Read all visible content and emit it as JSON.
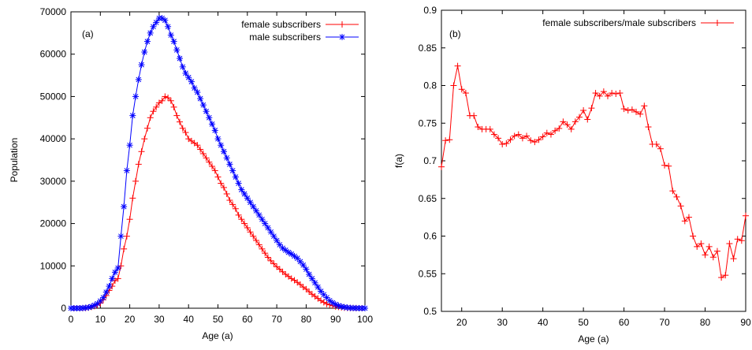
{
  "colors": {
    "female": "#ff0000",
    "male": "#0000ff",
    "ratio": "#ff0000",
    "axis": "#000000"
  },
  "chart_data": [
    {
      "type": "line",
      "panel_label": "(a)",
      "xlabel": "Age (a)",
      "ylabel": "Population",
      "xlim": [
        0,
        100
      ],
      "ylim": [
        0,
        70000
      ],
      "xticks": [
        "0",
        "10",
        "20",
        "30",
        "40",
        "50",
        "60",
        "70",
        "80",
        "90",
        "100"
      ],
      "yticks": [
        "0",
        "10000",
        "20000",
        "30000",
        "40000",
        "50000",
        "60000",
        "70000"
      ],
      "legend_position": "top-right",
      "grid": false,
      "x": [
        0,
        1,
        2,
        3,
        4,
        5,
        6,
        7,
        8,
        9,
        10,
        11,
        12,
        13,
        14,
        15,
        16,
        17,
        18,
        19,
        20,
        21,
        22,
        23,
        24,
        25,
        26,
        27,
        28,
        29,
        30,
        31,
        32,
        33,
        34,
        35,
        36,
        37,
        38,
        39,
        40,
        41,
        42,
        43,
        44,
        45,
        46,
        47,
        48,
        49,
        50,
        51,
        52,
        53,
        54,
        55,
        56,
        57,
        58,
        59,
        60,
        61,
        62,
        63,
        64,
        65,
        66,
        67,
        68,
        69,
        70,
        71,
        72,
        73,
        74,
        75,
        76,
        77,
        78,
        79,
        80,
        81,
        82,
        83,
        84,
        85,
        86,
        87,
        88,
        89,
        90,
        91,
        92,
        93,
        94,
        95,
        96,
        97,
        98,
        99,
        100
      ],
      "series": [
        {
          "name": "female subscribers",
          "marker": "plus",
          "color": "#ff0000",
          "values": [
            0,
            0,
            0,
            0,
            0,
            50,
            150,
            300,
            500,
            800,
            1200,
            2000,
            3000,
            4200,
            5200,
            6500,
            7000,
            10000,
            14000,
            17000,
            21000,
            26000,
            30000,
            34000,
            37000,
            40000,
            42500,
            45000,
            46500,
            47500,
            48500,
            49000,
            50000,
            49700,
            49000,
            47500,
            45500,
            44000,
            42500,
            41500,
            40000,
            39500,
            39000,
            38500,
            37500,
            36500,
            35500,
            34500,
            33500,
            32500,
            31000,
            29500,
            28500,
            27000,
            25500,
            24500,
            23500,
            22000,
            21000,
            20000,
            19000,
            18000,
            17000,
            16000,
            15000,
            14000,
            13000,
            12000,
            11200,
            10500,
            9800,
            9200,
            8600,
            8000,
            7500,
            7000,
            6600,
            6100,
            5600,
            5000,
            4500,
            3900,
            3300,
            2800,
            2300,
            1800,
            1400,
            1000,
            800,
            600,
            400,
            300,
            200,
            120,
            80,
            50,
            30,
            20,
            10,
            5,
            0
          ]
        },
        {
          "name": "male subscribers",
          "marker": "star",
          "color": "#0000ff",
          "values": [
            0,
            0,
            0,
            0,
            50,
            100,
            200,
            400,
            700,
            1100,
            1700,
            2500,
            3800,
            5200,
            7000,
            8500,
            9500,
            17000,
            24000,
            32500,
            38500,
            45500,
            50000,
            54000,
            57500,
            60500,
            63000,
            65000,
            66500,
            67500,
            68500,
            68500,
            68000,
            66500,
            64500,
            63000,
            61000,
            59000,
            57000,
            55500,
            54500,
            53500,
            52000,
            51000,
            49500,
            48000,
            46500,
            45000,
            43500,
            42000,
            40000,
            38500,
            37000,
            35500,
            34000,
            32500,
            31000,
            29500,
            28000,
            27000,
            26000,
            25000,
            24000,
            23000,
            22000,
            21000,
            20000,
            19000,
            18000,
            17000,
            16000,
            15000,
            14200,
            13700,
            13200,
            12800,
            12300,
            11800,
            11000,
            10200,
            9200,
            8000,
            7000,
            6000,
            5000,
            4000,
            3200,
            2500,
            1800,
            1300,
            900,
            600,
            400,
            250,
            150,
            80,
            50,
            30,
            10,
            5,
            0
          ]
        }
      ]
    },
    {
      "type": "line",
      "panel_label": "(b)",
      "xlabel": "Age (a)",
      "ylabel": "f(a)",
      "xlim": [
        15,
        90
      ],
      "ylim": [
        0.5,
        0.9
      ],
      "xticks": [
        "20",
        "30",
        "40",
        "50",
        "60",
        "70",
        "80",
        "90"
      ],
      "yticks": [
        "0.5",
        "0.55",
        "0.6",
        "0.65",
        "0.7",
        "0.75",
        "0.8",
        "0.85",
        "0.9"
      ],
      "legend_position": "top-right",
      "grid": false,
      "x": [
        15,
        16,
        17,
        18,
        19,
        20,
        21,
        22,
        23,
        24,
        25,
        26,
        27,
        28,
        29,
        30,
        31,
        32,
        33,
        34,
        35,
        36,
        37,
        38,
        39,
        40,
        41,
        42,
        43,
        44,
        45,
        46,
        47,
        48,
        49,
        50,
        51,
        52,
        53,
        54,
        55,
        56,
        57,
        58,
        59,
        60,
        61,
        62,
        63,
        64,
        65,
        66,
        67,
        68,
        69,
        70,
        71,
        72,
        73,
        74,
        75,
        76,
        77,
        78,
        79,
        80,
        81,
        82,
        83,
        84,
        85,
        86,
        87,
        88,
        89,
        90
      ],
      "series": [
        {
          "name": "female subscribers/male subscribers",
          "marker": "plus",
          "color": "#ff0000",
          "values": [
            0.692,
            0.727,
            0.728,
            0.8,
            0.826,
            0.795,
            0.79,
            0.76,
            0.76,
            0.745,
            0.742,
            0.742,
            0.742,
            0.735,
            0.73,
            0.722,
            0.723,
            0.728,
            0.733,
            0.735,
            0.73,
            0.733,
            0.727,
            0.725,
            0.728,
            0.732,
            0.737,
            0.735,
            0.74,
            0.743,
            0.752,
            0.748,
            0.742,
            0.752,
            0.758,
            0.767,
            0.755,
            0.77,
            0.79,
            0.786,
            0.792,
            0.786,
            0.79,
            0.789,
            0.79,
            0.769,
            0.767,
            0.768,
            0.765,
            0.762,
            0.773,
            0.745,
            0.722,
            0.722,
            0.716,
            0.694,
            0.693,
            0.66,
            0.652,
            0.64,
            0.62,
            0.625,
            0.6,
            0.586,
            0.59,
            0.575,
            0.586,
            0.572,
            0.58,
            0.545,
            0.548,
            0.59,
            0.57,
            0.596,
            0.594,
            0.627
          ]
        }
      ]
    }
  ]
}
